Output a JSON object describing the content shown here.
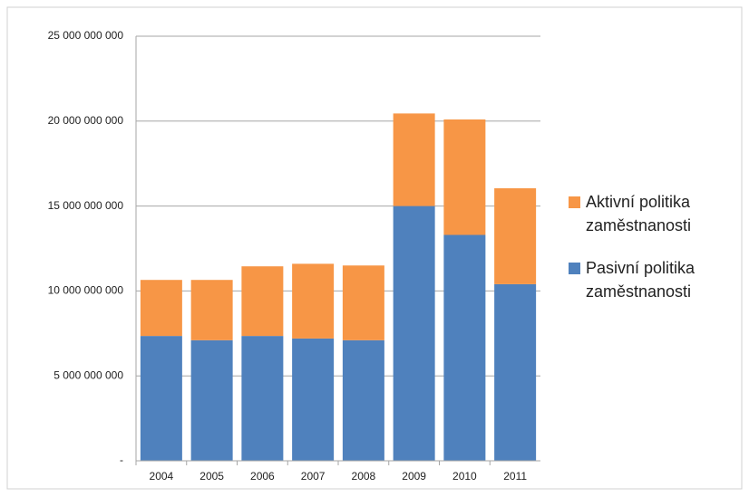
{
  "chart_data": {
    "type": "stacked-bar",
    "categories": [
      "2004",
      "2005",
      "2006",
      "2007",
      "2008",
      "2009",
      "2010",
      "2011"
    ],
    "series": [
      {
        "name": "Pasivní politika zaměstnanosti",
        "color": "#4f81bd",
        "values": [
          7350000000,
          7100000000,
          7350000000,
          7200000000,
          7100000000,
          15000000000,
          13300000000,
          10400000000
        ]
      },
      {
        "name": "Aktivní politika zaměstnanosti",
        "color": "#f79646",
        "values": [
          3300000000,
          3550000000,
          4100000000,
          4400000000,
          4400000000,
          5450000000,
          6800000000,
          5650000000
        ]
      }
    ],
    "ylim": [
      0,
      25000000000
    ],
    "yticks": [
      {
        "value": 0,
        "label": "-"
      },
      {
        "value": 5000000000,
        "label": "5 000 000 000"
      },
      {
        "value": 10000000000,
        "label": "10 000 000 000"
      },
      {
        "value": 15000000000,
        "label": "15 000 000 000"
      },
      {
        "value": 20000000000,
        "label": "20 000 000 000"
      },
      {
        "value": 25000000000,
        "label": "25 000 000 000"
      }
    ],
    "grid": true,
    "legend": "right"
  }
}
